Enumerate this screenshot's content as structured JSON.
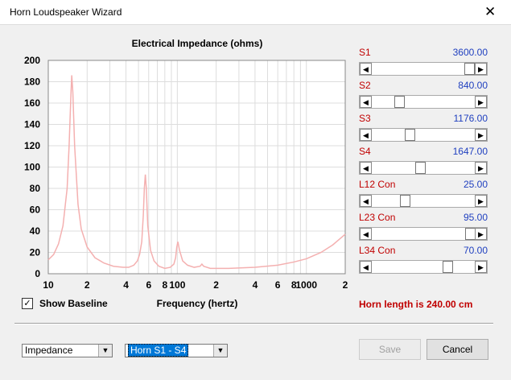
{
  "window": {
    "title": "Horn Loudspeaker Wizard"
  },
  "chart_data": {
    "type": "line",
    "title": "Electrical Impedance (ohms)",
    "x_label": "Frequency (hertz)",
    "x": [
      10,
      11,
      12,
      13,
      14,
      14.5,
      15,
      15.2,
      15.5,
      16,
      17,
      18,
      20,
      23,
      27,
      32,
      38,
      42,
      46,
      49,
      51,
      53,
      54.5,
      55.5,
      56.5,
      57.5,
      59,
      62,
      66,
      72,
      80,
      88,
      94,
      97,
      99,
      101,
      104,
      110,
      120,
      135,
      150,
      155,
      160,
      180,
      250,
      400,
      600,
      800,
      1000,
      1300,
      1600,
      2000
    ],
    "series": [
      {
        "color": "#f4b0b0",
        "values": [
          13,
          18,
          28,
          45,
          80,
          120,
          170,
          186,
          170,
          120,
          65,
          42,
          25,
          15,
          10,
          7,
          6,
          6,
          8,
          12,
          18,
          30,
          55,
          80,
          93,
          80,
          45,
          22,
          12,
          7,
          5,
          6,
          9,
          15,
          25,
          30,
          22,
          12,
          8,
          6,
          7,
          9,
          7,
          5,
          5,
          6,
          8,
          11,
          14,
          20,
          27,
          37
        ]
      }
    ],
    "xlim": [
      10,
      2000
    ],
    "log_x": true,
    "xticks": [
      10,
      {
        "value": 20,
        "label": "2"
      },
      {
        "value": 40,
        "label": "4"
      },
      {
        "value": 60,
        "label": "6"
      },
      {
        "value": 80,
        "label": "8"
      },
      100,
      {
        "value": 200,
        "label": "2"
      },
      {
        "value": 400,
        "label": "4"
      },
      {
        "value": 600,
        "label": "6"
      },
      {
        "value": 800,
        "label": "8"
      },
      1000,
      {
        "value": 2000,
        "label": "2"
      }
    ],
    "xminor": [
      30,
      50,
      70,
      90,
      300,
      500,
      700,
      900
    ],
    "ylim": [
      0,
      200
    ],
    "yticks": [
      0,
      20,
      40,
      60,
      80,
      100,
      120,
      140,
      160,
      180,
      200
    ],
    "grid": true
  },
  "sliders": [
    {
      "label": "S1",
      "value": "3600.00"
    },
    {
      "label": "S2",
      "value": "840.00"
    },
    {
      "label": "S3",
      "value": "1176.00"
    },
    {
      "label": "S4",
      "value": "1647.00"
    },
    {
      "label": "L12  Con",
      "value": "25.00"
    },
    {
      "label": "L23  Con",
      "value": "95.00"
    },
    {
      "label": "L34  Con",
      "value": "70.00"
    }
  ],
  "show_baseline": {
    "label": "Show Baseline",
    "checked": true
  },
  "horn_length": "Horn length is 240.00 cm",
  "dropdowns": [
    "Impedance",
    "Horn S1 - S4"
  ],
  "buttons": {
    "save": "Save",
    "cancel": "Cancel"
  }
}
